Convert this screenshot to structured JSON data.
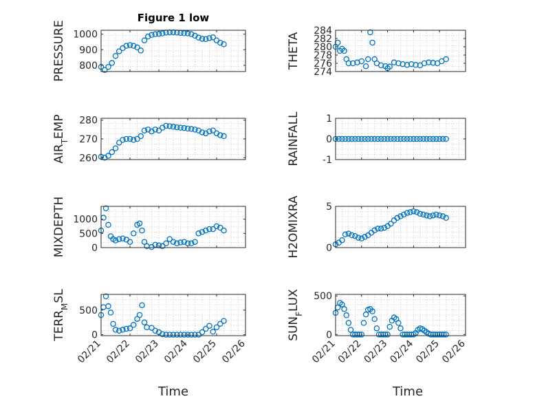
{
  "figure": {
    "title": "Figure 1 low",
    "xlabel": "Time"
  },
  "colors": {
    "marker": "#0072BD",
    "axes": "#262626",
    "grid": "#cfcfcf"
  },
  "chart_data": [
    {
      "type": "scatter",
      "marker": "circle",
      "grid": true,
      "title": "Figure 1 low",
      "ylabel": "PRESSURE",
      "xlim": [
        "02/21",
        "02/26"
      ],
      "ylim": [
        760,
        1025
      ],
      "yticks": [
        800,
        900,
        1000
      ],
      "x": [
        "02/21 00:00",
        "02/21 03:00",
        "02/21 06:00",
        "02/21 09:00",
        "02/21 12:00",
        "02/21 15:00",
        "02/21 18:00",
        "02/21 21:00",
        "02/22 00:00",
        "02/22 03:00",
        "02/22 06:00",
        "02/22 09:00",
        "02/22 12:00",
        "02/22 15:00",
        "02/22 18:00",
        "02/22 21:00",
        "02/23 00:00",
        "02/23 03:00",
        "02/23 06:00",
        "02/23 09:00",
        "02/23 12:00",
        "02/23 15:00",
        "02/23 18:00",
        "02/23 21:00",
        "02/24 00:00",
        "02/24 03:00",
        "02/24 06:00",
        "02/24 09:00",
        "02/24 12:00",
        "02/24 15:00",
        "02/24 18:00",
        "02/24 21:00",
        "02/25 00:00",
        "02/25 03:00",
        "02/25 06:00"
      ],
      "values": [
        790,
        770,
        790,
        815,
        860,
        890,
        910,
        925,
        930,
        925,
        915,
        895,
        960,
        985,
        995,
        1000,
        1002,
        1005,
        1010,
        1012,
        1012,
        1010,
        1008,
        1006,
        1005,
        1000,
        990,
        978,
        970,
        968,
        975,
        980,
        960,
        945,
        935
      ]
    },
    {
      "type": "scatter",
      "marker": "circle",
      "grid": true,
      "ylabel": "THETA",
      "xlim": [
        "02/21",
        "02/26"
      ],
      "ylim": [
        274,
        284
      ],
      "yticks": [
        274,
        276,
        278,
        280,
        282,
        284
      ],
      "x": [
        "02/21 00:00",
        "02/21 02:00",
        "02/21 04:00",
        "02/21 06:00",
        "02/21 08:00",
        "02/21 10:00",
        "02/21 12:00",
        "02/21 16:00",
        "02/21 20:00",
        "02/22 00:00",
        "02/22 04:00",
        "02/22 06:00",
        "02/22 08:00",
        "02/22 10:00",
        "02/22 12:00",
        "02/22 14:00",
        "02/22 18:00",
        "02/22 22:00",
        "02/23 00:00",
        "02/23 02:00",
        "02/23 06:00",
        "02/23 10:00",
        "02/23 14:00",
        "02/23 18:00",
        "02/23 22:00",
        "02/24 02:00",
        "02/24 06:00",
        "02/24 10:00",
        "02/24 14:00",
        "02/24 18:00",
        "02/24 22:00",
        "02/25 02:00",
        "02/25 06:00"
      ],
      "values": [
        280,
        281,
        279,
        279.5,
        279,
        277,
        276,
        276,
        276.2,
        276.5,
        275.3,
        277,
        283.5,
        281,
        277,
        276,
        275.5,
        275.3,
        274.8,
        275.2,
        276.2,
        276,
        275.8,
        275.6,
        275.8,
        275.6,
        275.5,
        276,
        276.2,
        276.1,
        276,
        276.5,
        277
      ]
    },
    {
      "type": "scatter",
      "marker": "circle",
      "grid": true,
      "ylabel": "AIR_TEMP",
      "xlim": [
        "02/21",
        "02/26"
      ],
      "ylim": [
        259,
        281
      ],
      "yticks": [
        260,
        270,
        280
      ],
      "x": [
        "02/21 00:00",
        "02/21 03:00",
        "02/21 06:00",
        "02/21 09:00",
        "02/21 12:00",
        "02/21 15:00",
        "02/21 18:00",
        "02/21 21:00",
        "02/22 00:00",
        "02/22 03:00",
        "02/22 06:00",
        "02/22 09:00",
        "02/22 12:00",
        "02/22 15:00",
        "02/22 18:00",
        "02/22 21:00",
        "02/23 00:00",
        "02/23 03:00",
        "02/23 06:00",
        "02/23 09:00",
        "02/23 12:00",
        "02/23 15:00",
        "02/23 18:00",
        "02/23 21:00",
        "02/24 00:00",
        "02/24 03:00",
        "02/24 06:00",
        "02/24 09:00",
        "02/24 12:00",
        "02/24 15:00",
        "02/24 18:00",
        "02/24 21:00",
        "02/25 00:00",
        "02/25 03:00",
        "02/25 06:00"
      ],
      "values": [
        260.5,
        260,
        261,
        263,
        265,
        268,
        269.5,
        270,
        270,
        269.5,
        270,
        271.5,
        274.5,
        275,
        274,
        275,
        274.5,
        276,
        277,
        276.8,
        276.5,
        276.2,
        276,
        275.8,
        275.5,
        275.3,
        275,
        274.5,
        273.5,
        273,
        274,
        274.5,
        273,
        272,
        271.5
      ]
    },
    {
      "type": "scatter",
      "marker": "circle",
      "grid": true,
      "ylabel": "RAINFALL",
      "xlim": [
        "02/21",
        "02/26"
      ],
      "ylim": [
        -1,
        1
      ],
      "yticks": [
        -1,
        0,
        1
      ],
      "x": [
        "02/21 00:00",
        "02/21 03:00",
        "02/21 06:00",
        "02/21 09:00",
        "02/21 12:00",
        "02/21 15:00",
        "02/21 18:00",
        "02/21 21:00",
        "02/22 00:00",
        "02/22 03:00",
        "02/22 06:00",
        "02/22 09:00",
        "02/22 12:00",
        "02/22 15:00",
        "02/22 18:00",
        "02/22 21:00",
        "02/23 00:00",
        "02/23 03:00",
        "02/23 06:00",
        "02/23 09:00",
        "02/23 12:00",
        "02/23 15:00",
        "02/23 18:00",
        "02/23 21:00",
        "02/24 00:00",
        "02/24 03:00",
        "02/24 06:00",
        "02/24 09:00",
        "02/24 12:00",
        "02/24 15:00",
        "02/24 18:00",
        "02/24 21:00",
        "02/25 00:00",
        "02/25 03:00",
        "02/25 06:00"
      ],
      "values": [
        0,
        0,
        0,
        0,
        0,
        0,
        0,
        0,
        0,
        0,
        0,
        0,
        0,
        0,
        0,
        0,
        0,
        0,
        0,
        0,
        0,
        0,
        0,
        0,
        0,
        0,
        0,
        0,
        0,
        0,
        0,
        0,
        0,
        0,
        0
      ]
    },
    {
      "type": "scatter",
      "marker": "circle",
      "grid": true,
      "ylabel": "MIXDEPTH",
      "xlim": [
        "02/21",
        "02/26"
      ],
      "ylim": [
        0,
        1450
      ],
      "yticks": [
        0,
        500,
        1000
      ],
      "x": [
        "02/21 00:00",
        "02/21 02:00",
        "02/21 04:00",
        "02/21 06:00",
        "02/21 08:00",
        "02/21 10:00",
        "02/21 12:00",
        "02/21 15:00",
        "02/21 18:00",
        "02/21 21:00",
        "02/22 00:00",
        "02/22 03:00",
        "02/22 06:00",
        "02/22 08:00",
        "02/22 10:00",
        "02/22 12:00",
        "02/22 14:00",
        "02/22 18:00",
        "02/22 21:00",
        "02/23 00:00",
        "02/23 03:00",
        "02/23 06:00",
        "02/23 09:00",
        "02/23 12:00",
        "02/23 15:00",
        "02/23 18:00",
        "02/23 21:00",
        "02/24 00:00",
        "02/24 03:00",
        "02/24 06:00",
        "02/24 09:00",
        "02/24 12:00",
        "02/24 15:00",
        "02/24 18:00",
        "02/24 21:00",
        "02/25 00:00",
        "02/25 03:00",
        "02/25 06:00"
      ],
      "values": [
        600,
        1050,
        1380,
        800,
        400,
        300,
        250,
        300,
        320,
        280,
        200,
        500,
        800,
        850,
        600,
        200,
        50,
        20,
        100,
        80,
        50,
        150,
        300,
        200,
        150,
        180,
        200,
        150,
        150,
        200,
        500,
        550,
        600,
        650,
        650,
        750,
        700,
        600
      ]
    },
    {
      "type": "scatter",
      "marker": "circle",
      "grid": true,
      "ylabel": "H2OMIXRA",
      "xlim": [
        "02/21",
        "02/26"
      ],
      "ylim": [
        0,
        5
      ],
      "yticks": [
        0,
        5
      ],
      "x": [
        "02/21 00:00",
        "02/21 03:00",
        "02/21 06:00",
        "02/21 09:00",
        "02/21 12:00",
        "02/21 15:00",
        "02/21 18:00",
        "02/21 21:00",
        "02/22 00:00",
        "02/22 03:00",
        "02/22 06:00",
        "02/22 09:00",
        "02/22 12:00",
        "02/22 15:00",
        "02/22 18:00",
        "02/22 21:00",
        "02/23 00:00",
        "02/23 03:00",
        "02/23 06:00",
        "02/23 09:00",
        "02/23 12:00",
        "02/23 15:00",
        "02/23 18:00",
        "02/23 21:00",
        "02/24 00:00",
        "02/24 03:00",
        "02/24 06:00",
        "02/24 09:00",
        "02/24 12:00",
        "02/24 15:00",
        "02/24 18:00",
        "02/24 21:00",
        "02/25 00:00",
        "02/25 03:00",
        "02/25 06:00"
      ],
      "values": [
        0.4,
        0.6,
        0.9,
        1.6,
        1.7,
        1.5,
        1.4,
        1.2,
        1.1,
        1.3,
        1.5,
        1.8,
        2.1,
        2.3,
        2.3,
        2.4,
        2.6,
        2.9,
        3.3,
        3.6,
        3.8,
        4.0,
        4.2,
        4.3,
        4.4,
        4.3,
        4.1,
        4.0,
        3.9,
        3.8,
        3.9,
        4.0,
        3.9,
        3.8,
        3.6
      ]
    },
    {
      "type": "scatter",
      "marker": "circle",
      "grid": true,
      "ylabel": "TERR_MSL",
      "xlim": [
        "02/21",
        "02/26"
      ],
      "ylim": [
        -20,
        820
      ],
      "yticks": [
        0,
        500
      ],
      "x": [
        "02/21 00:00",
        "02/21 02:00",
        "02/21 04:00",
        "02/21 06:00",
        "02/21 08:00",
        "02/21 10:00",
        "02/21 12:00",
        "02/21 15:00",
        "02/21 18:00",
        "02/21 21:00",
        "02/22 00:00",
        "02/22 03:00",
        "02/22 06:00",
        "02/22 08:00",
        "02/22 10:00",
        "02/22 12:00",
        "02/22 14:00",
        "02/22 18:00",
        "02/22 21:00",
        "02/23 00:00",
        "02/23 03:00",
        "02/23 06:00",
        "02/23 09:00",
        "02/23 12:00",
        "02/23 15:00",
        "02/23 18:00",
        "02/23 21:00",
        "02/24 00:00",
        "02/24 03:00",
        "02/24 06:00",
        "02/24 09:00",
        "02/24 12:00",
        "02/24 15:00",
        "02/24 18:00",
        "02/24 21:00",
        "02/25 00:00",
        "02/25 03:00",
        "02/25 06:00"
      ],
      "values": [
        400,
        560,
        780,
        580,
        450,
        220,
        100,
        80,
        100,
        120,
        130,
        200,
        320,
        400,
        600,
        250,
        150,
        140,
        80,
        50,
        10,
        0,
        0,
        0,
        0,
        0,
        0,
        0,
        0,
        0,
        0,
        50,
        120,
        180,
        60,
        150,
        220,
        280
      ]
    },
    {
      "type": "scatter",
      "marker": "circle",
      "grid": true,
      "ylabel": "SUN_FLUX",
      "xlim": [
        "02/21",
        "02/26"
      ],
      "ylim": [
        -15,
        520
      ],
      "yticks": [
        0,
        500
      ],
      "x": [
        "02/21 00:00",
        "02/21 02:00",
        "02/21 04:00",
        "02/21 06:00",
        "02/21 08:00",
        "02/21 10:00",
        "02/21 12:00",
        "02/21 14:00",
        "02/21 16:00",
        "02/21 18:00",
        "02/21 20:00",
        "02/21 22:00",
        "02/22 00:00",
        "02/22 02:00",
        "02/22 04:00",
        "02/22 06:00",
        "02/22 08:00",
        "02/22 10:00",
        "02/22 12:00",
        "02/22 14:00",
        "02/22 16:00",
        "02/22 18:00",
        "02/22 20:00",
        "02/22 22:00",
        "02/23 00:00",
        "02/23 02:00",
        "02/23 04:00",
        "02/23 06:00",
        "02/23 08:00",
        "02/23 10:00",
        "02/23 12:00",
        "02/23 14:00",
        "02/23 16:00",
        "02/23 18:00",
        "02/23 20:00",
        "02/23 22:00",
        "02/24 00:00",
        "02/24 02:00",
        "02/24 04:00",
        "02/24 06:00",
        "02/24 08:00",
        "02/24 10:00",
        "02/24 12:00",
        "02/24 14:00",
        "02/24 16:00",
        "02/24 18:00",
        "02/24 20:00",
        "02/24 22:00",
        "02/25 00:00",
        "02/25 02:00",
        "02/25 04:00",
        "02/25 06:00"
      ],
      "values": [
        280,
        350,
        410,
        390,
        330,
        250,
        150,
        60,
        0,
        0,
        0,
        0,
        0,
        150,
        260,
        320,
        330,
        300,
        200,
        80,
        0,
        0,
        0,
        0,
        0,
        100,
        180,
        220,
        200,
        150,
        80,
        0,
        0,
        0,
        0,
        0,
        0,
        20,
        60,
        80,
        70,
        50,
        30,
        10,
        0,
        0,
        0,
        0,
        0,
        0,
        0,
        0
      ]
    }
  ]
}
